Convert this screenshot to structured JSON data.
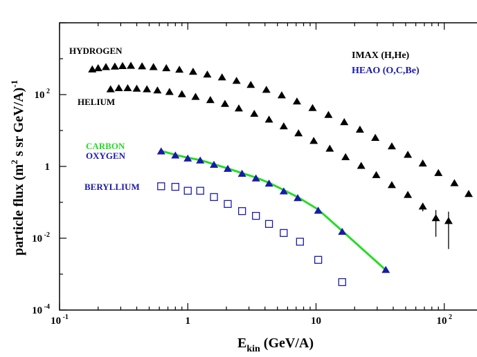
{
  "chart_data": {
    "type": "scatter",
    "title": "",
    "xscale": "log",
    "yscale": "log",
    "xlim": [
      0.1,
      180
    ],
    "ylim": [
      0.0001,
      10000
    ],
    "x_ticks": [
      {
        "value": 0.1,
        "base": "10",
        "exp": "-1"
      },
      {
        "value": 1,
        "base": "1",
        "exp": ""
      },
      {
        "value": 10,
        "base": "10",
        "exp": ""
      },
      {
        "value": 100,
        "base": "10",
        "exp": "2"
      }
    ],
    "y_ticks": [
      {
        "value": 0.0001,
        "base": "10",
        "exp": "-4"
      },
      {
        "value": 0.01,
        "base": "10",
        "exp": "-2"
      },
      {
        "value": 1,
        "base": "1",
        "exp": ""
      },
      {
        "value": 100,
        "base": "10",
        "exp": "2"
      }
    ],
    "xlabel": {
      "main": "E",
      "sub": "kin",
      "rest": " (GeV/A)"
    },
    "ylabel": {
      "pre": "particle flux (m",
      "sup1": "2",
      "mid": " s sr GeV/A)",
      "sup2": "-1"
    },
    "legend": [
      {
        "label": "IMAX (H,He)",
        "color": "#000000"
      },
      {
        "label": "HEAO (O,C,Be)",
        "color": "#1a1aaa"
      }
    ],
    "annotations": [
      {
        "text": "HYDROGEN",
        "color": "#000000"
      },
      {
        "text": "HELIUM",
        "color": "#000000"
      },
      {
        "text": "CARBON",
        "color": "#22dd22"
      },
      {
        "text": "OXYGEN",
        "color": "#1a1aaa"
      },
      {
        "text": "BERYLLIUM",
        "color": "#1a1aaa"
      }
    ],
    "series": [
      {
        "name": "HYDROGEN",
        "marker": "triangle",
        "color": "#000000",
        "x": [
          0.18,
          0.2,
          0.23,
          0.27,
          0.31,
          0.36,
          0.44,
          0.54,
          0.68,
          0.86,
          1.1,
          1.42,
          1.85,
          2.4,
          3.1,
          4.1,
          5.4,
          7.1,
          9.4,
          12.5,
          16.6,
          22,
          29,
          39,
          52,
          68,
          90,
          120,
          155
        ],
        "y": [
          500,
          540,
          580,
          600,
          620,
          630,
          610,
          580,
          540,
          490,
          430,
          360,
          300,
          240,
          185,
          135,
          95,
          64,
          42,
          27,
          17,
          10.5,
          6.2,
          3.6,
          2.1,
          1.2,
          0.65,
          0.34,
          0.17
        ],
        "err": [
          0,
          0,
          0,
          0,
          0,
          0,
          0,
          0,
          0,
          0,
          0,
          0,
          0,
          0,
          0,
          0,
          0,
          0,
          0,
          0,
          0,
          0,
          0,
          0,
          0,
          0,
          0,
          0,
          0
        ]
      },
      {
        "name": "HELIUM",
        "marker": "triangle",
        "color": "#000000",
        "x": [
          0.25,
          0.29,
          0.34,
          0.4,
          0.48,
          0.58,
          0.72,
          0.9,
          1.15,
          1.5,
          1.95,
          2.5,
          3.3,
          4.3,
          5.6,
          7.3,
          9.6,
          12.8,
          17,
          22.5,
          29.5,
          39,
          52,
          68,
          86,
          108
        ],
        "y": [
          140,
          150,
          150,
          145,
          140,
          130,
          118,
          102,
          86,
          70,
          55,
          41,
          29,
          20,
          13,
          8.3,
          5.1,
          3.1,
          1.8,
          1.03,
          0.57,
          0.3,
          0.16,
          0.076,
          0.036,
          0.03
        ],
        "err": [
          0,
          0,
          0,
          0,
          0,
          0,
          0,
          0,
          0,
          0,
          0,
          0,
          0,
          0,
          0,
          0,
          0,
          0,
          0,
          0,
          0,
          0,
          0,
          0.02,
          0.025,
          0.025
        ]
      },
      {
        "name": "OXYGEN",
        "marker": "triangle",
        "color": "#1a1aaa",
        "x": [
          0.62,
          0.8,
          1.0,
          1.25,
          1.6,
          2.05,
          2.65,
          3.4,
          4.3,
          5.6,
          7.2,
          10.4,
          16,
          35
        ],
        "y": [
          2.6,
          2.0,
          1.65,
          1.45,
          1.1,
          0.85,
          0.62,
          0.46,
          0.33,
          0.2,
          0.13,
          0.058,
          0.015,
          0.0013
        ],
        "err": [
          0,
          0,
          0,
          0,
          0,
          0,
          0,
          0,
          0,
          0,
          0,
          0,
          0,
          0
        ]
      },
      {
        "name": "BERYLLIUM",
        "marker": "square-open",
        "color": "#1a1aaa",
        "x": [
          0.62,
          0.8,
          1.0,
          1.25,
          1.6,
          2.05,
          2.65,
          3.4,
          4.3,
          5.6,
          7.5,
          10.4,
          16
        ],
        "y": [
          0.28,
          0.27,
          0.21,
          0.21,
          0.14,
          0.09,
          0.057,
          0.042,
          0.025,
          0.014,
          0.008,
          0.0025,
          0.0006
        ],
        "err": [
          0,
          0,
          0,
          0,
          0,
          0,
          0,
          0,
          0,
          0,
          0,
          0,
          0
        ]
      }
    ],
    "lines": [
      {
        "name": "CARBON",
        "color": "#22dd22",
        "x": [
          0.62,
          0.8,
          1.0,
          1.25,
          1.6,
          2.05,
          2.65,
          3.4,
          4.3,
          5.6,
          7.2,
          10.4,
          16,
          35
        ],
        "y": [
          2.7,
          2.1,
          1.75,
          1.5,
          1.15,
          0.88,
          0.65,
          0.49,
          0.35,
          0.22,
          0.14,
          0.063,
          0.016,
          0.0013
        ]
      }
    ]
  }
}
